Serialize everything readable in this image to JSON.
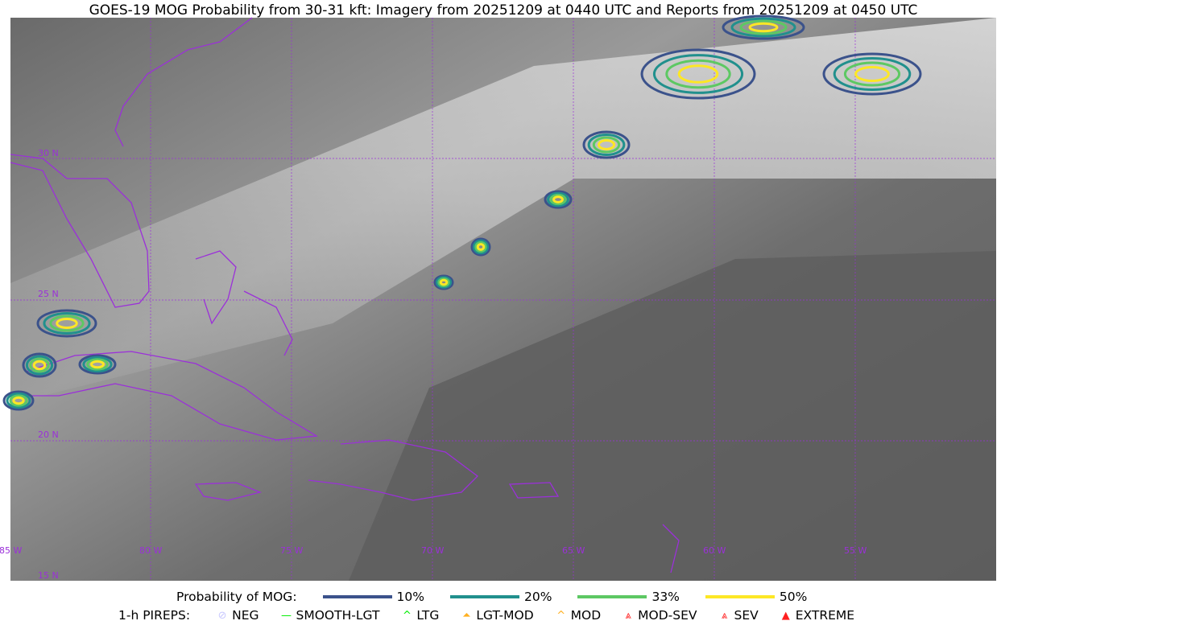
{
  "title": "GOES-19 MOG Probability from 30-31 kft: Imagery from 20251209 at 0440 UTC and Reports from 20251209 at 0450 UTC",
  "map": {
    "longitude_labels": [
      "85 W",
      "80 W",
      "75 W",
      "70 W",
      "65 W",
      "60 W",
      "55 W"
    ],
    "latitude_labels": [
      "30 N",
      "25 N",
      "20 N",
      "15 N"
    ],
    "grid_color": "#9b30d9",
    "coast_color": "#9b30d9"
  },
  "legend": {
    "probability_label": "Probability of MOG:",
    "levels": [
      {
        "label": "10%",
        "color": "#3b528b"
      },
      {
        "label": "20%",
        "color": "#21908d"
      },
      {
        "label": "33%",
        "color": "#5dc863"
      },
      {
        "label": "50%",
        "color": "#fde725"
      }
    ],
    "pireps_label": "1-h PIREPS:",
    "pireps": [
      {
        "label": "NEG",
        "color": "#c8c8ff",
        "icon": "neg-icon"
      },
      {
        "label": "SMOOTH-LGT",
        "color": "#00ee00",
        "icon": "line-icon"
      },
      {
        "label": "LTG",
        "color": "#00ee00",
        "icon": "caret-icon"
      },
      {
        "label": "LGT-MOD",
        "color": "#ffb020",
        "icon": "caret-bar-icon"
      },
      {
        "label": "MOD",
        "color": "#ffb020",
        "icon": "caret-icon"
      },
      {
        "label": "MOD-SEV",
        "color": "#ff2020",
        "icon": "double-caret-bar-icon"
      },
      {
        "label": "SEV",
        "color": "#ff2020",
        "icon": "double-caret-icon"
      },
      {
        "label": "EXTREME",
        "color": "#ff2020",
        "icon": "filled-triangle-icon"
      }
    ]
  }
}
